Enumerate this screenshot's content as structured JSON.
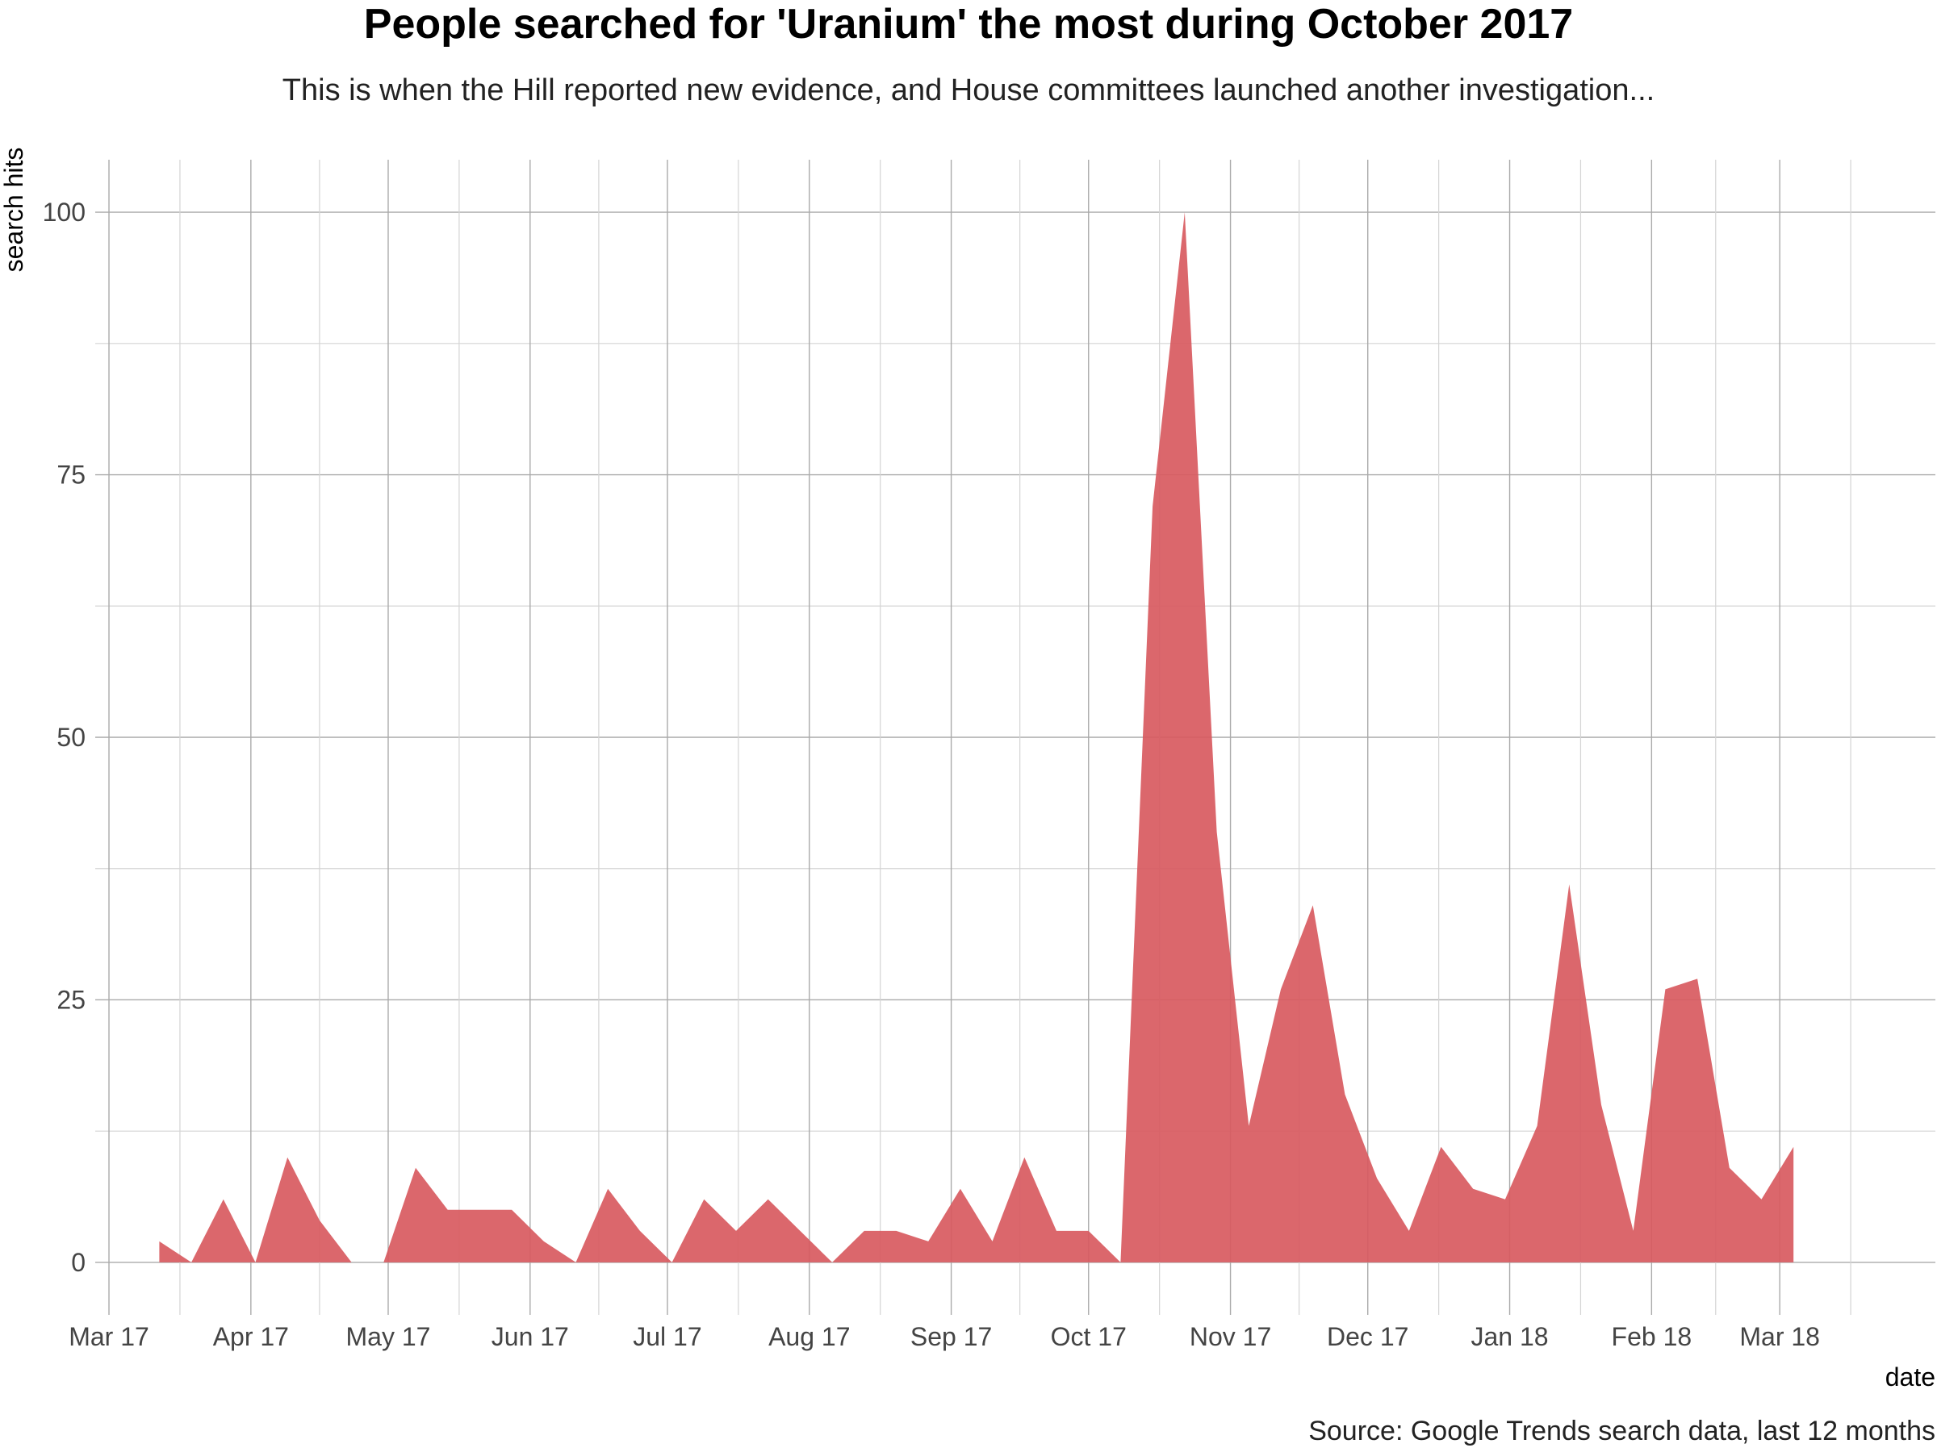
{
  "chart_data": {
    "type": "area",
    "title": "People searched for 'Uranium' the most during October 2017",
    "subtitle": "This is when the Hill reported new evidence, and House committees launched another investigation...",
    "caption": "Source: Google Trends search data, last 12 months",
    "xlabel": "date",
    "ylabel": "search hits",
    "ylim": [
      -5,
      105
    ],
    "xlim": [
      "2017-03-01",
      "2018-03-31"
    ],
    "y_ticks": [
      0,
      25,
      50,
      75,
      100
    ],
    "x_ticks": [
      {
        "date": "2017-03-01",
        "label": "Mar 17"
      },
      {
        "date": "2017-04-01",
        "label": "Apr 17"
      },
      {
        "date": "2017-05-01",
        "label": "May 17"
      },
      {
        "date": "2017-06-01",
        "label": "Jun 17"
      },
      {
        "date": "2017-07-01",
        "label": "Jul 17"
      },
      {
        "date": "2017-08-01",
        "label": "Aug 17"
      },
      {
        "date": "2017-09-01",
        "label": "Sep 17"
      },
      {
        "date": "2017-10-01",
        "label": "Oct 17"
      },
      {
        "date": "2017-11-01",
        "label": "Nov 17"
      },
      {
        "date": "2017-12-01",
        "label": "Dec 17"
      },
      {
        "date": "2018-01-01",
        "label": "Jan 18"
      },
      {
        "date": "2018-02-01",
        "label": "Feb 18"
      },
      {
        "date": "2018-03-01",
        "label": "Mar 18"
      }
    ],
    "grid": true,
    "legend": "none",
    "fill_color": "#d85a5f",
    "series": [
      {
        "x": [
          "2017-03-12",
          "2017-03-19",
          "2017-03-26",
          "2017-04-02",
          "2017-04-09",
          "2017-04-16",
          "2017-04-23",
          "2017-04-30",
          "2017-05-07",
          "2017-05-14",
          "2017-05-21",
          "2017-05-28",
          "2017-06-04",
          "2017-06-11",
          "2017-06-18",
          "2017-06-25",
          "2017-07-02",
          "2017-07-09",
          "2017-07-16",
          "2017-07-23",
          "2017-07-30",
          "2017-08-06",
          "2017-08-13",
          "2017-08-20",
          "2017-08-27",
          "2017-09-03",
          "2017-09-10",
          "2017-09-17",
          "2017-09-24",
          "2017-10-01",
          "2017-10-08",
          "2017-10-15",
          "2017-10-22",
          "2017-10-29",
          "2017-11-05",
          "2017-11-12",
          "2017-11-19",
          "2017-11-26",
          "2017-12-03",
          "2017-12-10",
          "2017-12-17",
          "2017-12-24",
          "2017-12-31",
          "2018-01-07",
          "2018-01-14",
          "2018-01-21",
          "2018-01-28",
          "2018-02-04",
          "2018-02-11",
          "2018-02-18",
          "2018-02-25",
          "2018-03-04"
        ],
        "values": [
          2,
          0,
          6,
          0,
          10,
          4,
          0,
          0,
          9,
          5,
          5,
          5,
          2,
          0,
          7,
          3,
          0,
          6,
          3,
          6,
          3,
          0,
          3,
          3,
          2,
          7,
          2,
          10,
          3,
          3,
          0,
          72,
          100,
          41,
          13,
          26,
          34,
          16,
          8,
          3,
          11,
          7,
          6,
          13,
          36,
          15,
          3,
          26,
          27,
          9,
          6,
          11
        ]
      }
    ]
  }
}
